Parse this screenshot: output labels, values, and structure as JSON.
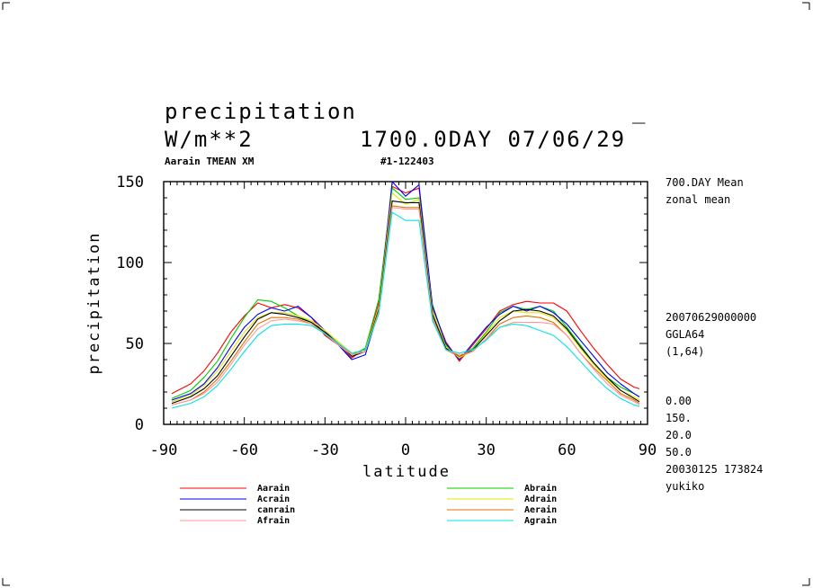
{
  "header": {
    "variable": "precipitation",
    "unit": "W/m**2",
    "date_info": "1700.0DAY 07/06/29",
    "dash_mark": "_",
    "subtitle_left": "Aarain TMEAN XM",
    "subtitle_mid": "#1-122403"
  },
  "side_info": {
    "mean_line1": "700.DAY Mean",
    "mean_line2": "zonal mean",
    "run_date": "20070629000000",
    "grid": "GGLA64",
    "range": "(1,64)",
    "stats": [
      "0.00",
      "150.",
      "20.0",
      "50.0"
    ],
    "timestamp": "20030125 173824",
    "user": "yukiko"
  },
  "chart_data": {
    "type": "line",
    "title": "",
    "xlabel": "latitude",
    "ylabel": "precipitation",
    "xlim": [
      -90,
      90
    ],
    "ylim": [
      0,
      150
    ],
    "xticks": [
      -90,
      -60,
      -30,
      0,
      30,
      60,
      90
    ],
    "yticks": [
      0,
      50,
      100,
      150
    ],
    "grid": false,
    "legend_position": "bottom",
    "x": [
      -87,
      -80,
      -75,
      -70,
      -65,
      -60,
      -55,
      -50,
      -45,
      -40,
      -35,
      -30,
      -25,
      -20,
      -15,
      -10,
      -5,
      0,
      5,
      10,
      15,
      20,
      25,
      30,
      35,
      40,
      45,
      50,
      55,
      60,
      65,
      70,
      75,
      80,
      85,
      87
    ],
    "series": [
      {
        "name": "Aarain",
        "color": "#ff0000",
        "values": [
          19,
          25,
          33,
          44,
          57,
          67,
          75,
          72,
          74,
          72,
          66,
          55,
          49,
          41,
          47,
          75,
          147,
          143,
          146,
          72,
          51,
          39,
          49,
          59,
          70,
          74,
          76,
          75,
          75,
          70,
          58,
          47,
          37,
          28,
          23,
          22
        ]
      },
      {
        "name": "Abrain",
        "color": "#00cc00",
        "values": [
          16,
          21,
          29,
          39,
          53,
          66,
          77,
          76,
          72,
          67,
          63,
          56,
          49,
          43,
          47,
          77,
          146,
          139,
          140,
          74,
          49,
          41,
          47,
          57,
          69,
          73,
          71,
          73,
          70,
          60,
          49,
          38,
          29,
          23,
          19,
          17
        ]
      },
      {
        "name": "Acrain",
        "color": "#0000ff",
        "values": [
          15,
          19,
          25,
          35,
          48,
          60,
          68,
          72,
          70,
          73,
          66,
          58,
          49,
          40,
          43,
          70,
          150,
          141,
          148,
          73,
          50,
          40,
          50,
          60,
          68,
          73,
          70,
          73,
          69,
          62,
          52,
          42,
          32,
          25,
          19,
          17
        ]
      },
      {
        "name": "Adrain",
        "color": "#e6e600",
        "values": [
          14,
          18,
          24,
          33,
          45,
          57,
          66,
          69,
          69,
          67,
          64,
          58,
          51,
          44,
          46,
          72,
          143,
          136,
          139,
          70,
          48,
          41,
          46,
          56,
          66,
          70,
          69,
          69,
          66,
          58,
          47,
          37,
          28,
          21,
          17,
          15
        ]
      },
      {
        "name": "canrain",
        "color": "#000000",
        "values": [
          13,
          17,
          22,
          30,
          42,
          54,
          65,
          69,
          68,
          66,
          63,
          57,
          50,
          42,
          45,
          71,
          138,
          137,
          137,
          68,
          47,
          42,
          46,
          55,
          64,
          70,
          71,
          70,
          67,
          59,
          48,
          38,
          29,
          21,
          16,
          14
        ]
      },
      {
        "name": "Aerain",
        "color": "#e07000",
        "values": [
          12,
          15,
          20,
          28,
          39,
          51,
          62,
          66,
          66,
          65,
          62,
          56,
          50,
          43,
          45,
          70,
          135,
          134,
          134,
          66,
          46,
          42,
          45,
          53,
          62,
          66,
          67,
          66,
          63,
          55,
          44,
          35,
          27,
          19,
          15,
          13
        ]
      },
      {
        "name": "Afrain",
        "color": "#ff9999",
        "values": [
          12,
          15,
          19,
          26,
          37,
          49,
          59,
          64,
          65,
          64,
          62,
          56,
          49,
          43,
          45,
          69,
          134,
          133,
          133,
          65,
          46,
          43,
          45,
          53,
          60,
          63,
          63,
          63,
          62,
          55,
          44,
          34,
          25,
          18,
          14,
          12
        ]
      },
      {
        "name": "Agrain",
        "color": "#00e5e5",
        "values": [
          10,
          13,
          17,
          24,
          34,
          45,
          55,
          61,
          62,
          62,
          61,
          56,
          50,
          44,
          46,
          68,
          131,
          126,
          126,
          64,
          46,
          44,
          46,
          52,
          60,
          62,
          61,
          58,
          55,
          48,
          39,
          30,
          22,
          16,
          12,
          11
        ]
      }
    ]
  }
}
